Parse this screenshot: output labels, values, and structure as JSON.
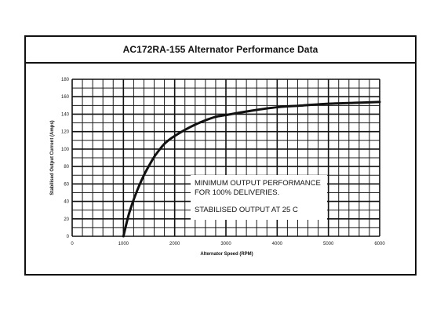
{
  "chart_data": {
    "type": "line",
    "title": "AC172RA-155 Alternator Performance Data",
    "xlabel": "Alternator Speed (RPM)",
    "ylabel": "Stabilised Output Current (Amps)",
    "xlim": [
      0,
      6000
    ],
    "ylim": [
      0,
      180
    ],
    "x_ticks": [
      0,
      1000,
      2000,
      3000,
      4000,
      5000,
      6000
    ],
    "y_ticks": [
      0,
      20,
      40,
      60,
      80,
      100,
      120,
      140,
      160,
      180
    ],
    "grid": true,
    "series": [
      {
        "x": [
          1000,
          1100,
          1200,
          1300,
          1400,
          1500,
          1600,
          1700,
          1800,
          1900,
          2000,
          2200,
          2400,
          2600,
          2800,
          3000,
          3500,
          4000,
          4500,
          5000,
          5500,
          6000
        ],
        "y": [
          0,
          24,
          42,
          57,
          70,
          81,
          91,
          99,
          106,
          111,
          115,
          122,
          128,
          133,
          137,
          139,
          144,
          148,
          150,
          152,
          153,
          154
        ]
      }
    ],
    "annotations": [
      "MINIMUM OUTPUT PERFORMANCE",
      "FOR 100% DELIVERIES.",
      "STABILISED OUTPUT AT 25 C"
    ],
    "colors": {
      "line": "#111111",
      "grid": "#1a1a1a",
      "background": "#ffffff"
    }
  }
}
